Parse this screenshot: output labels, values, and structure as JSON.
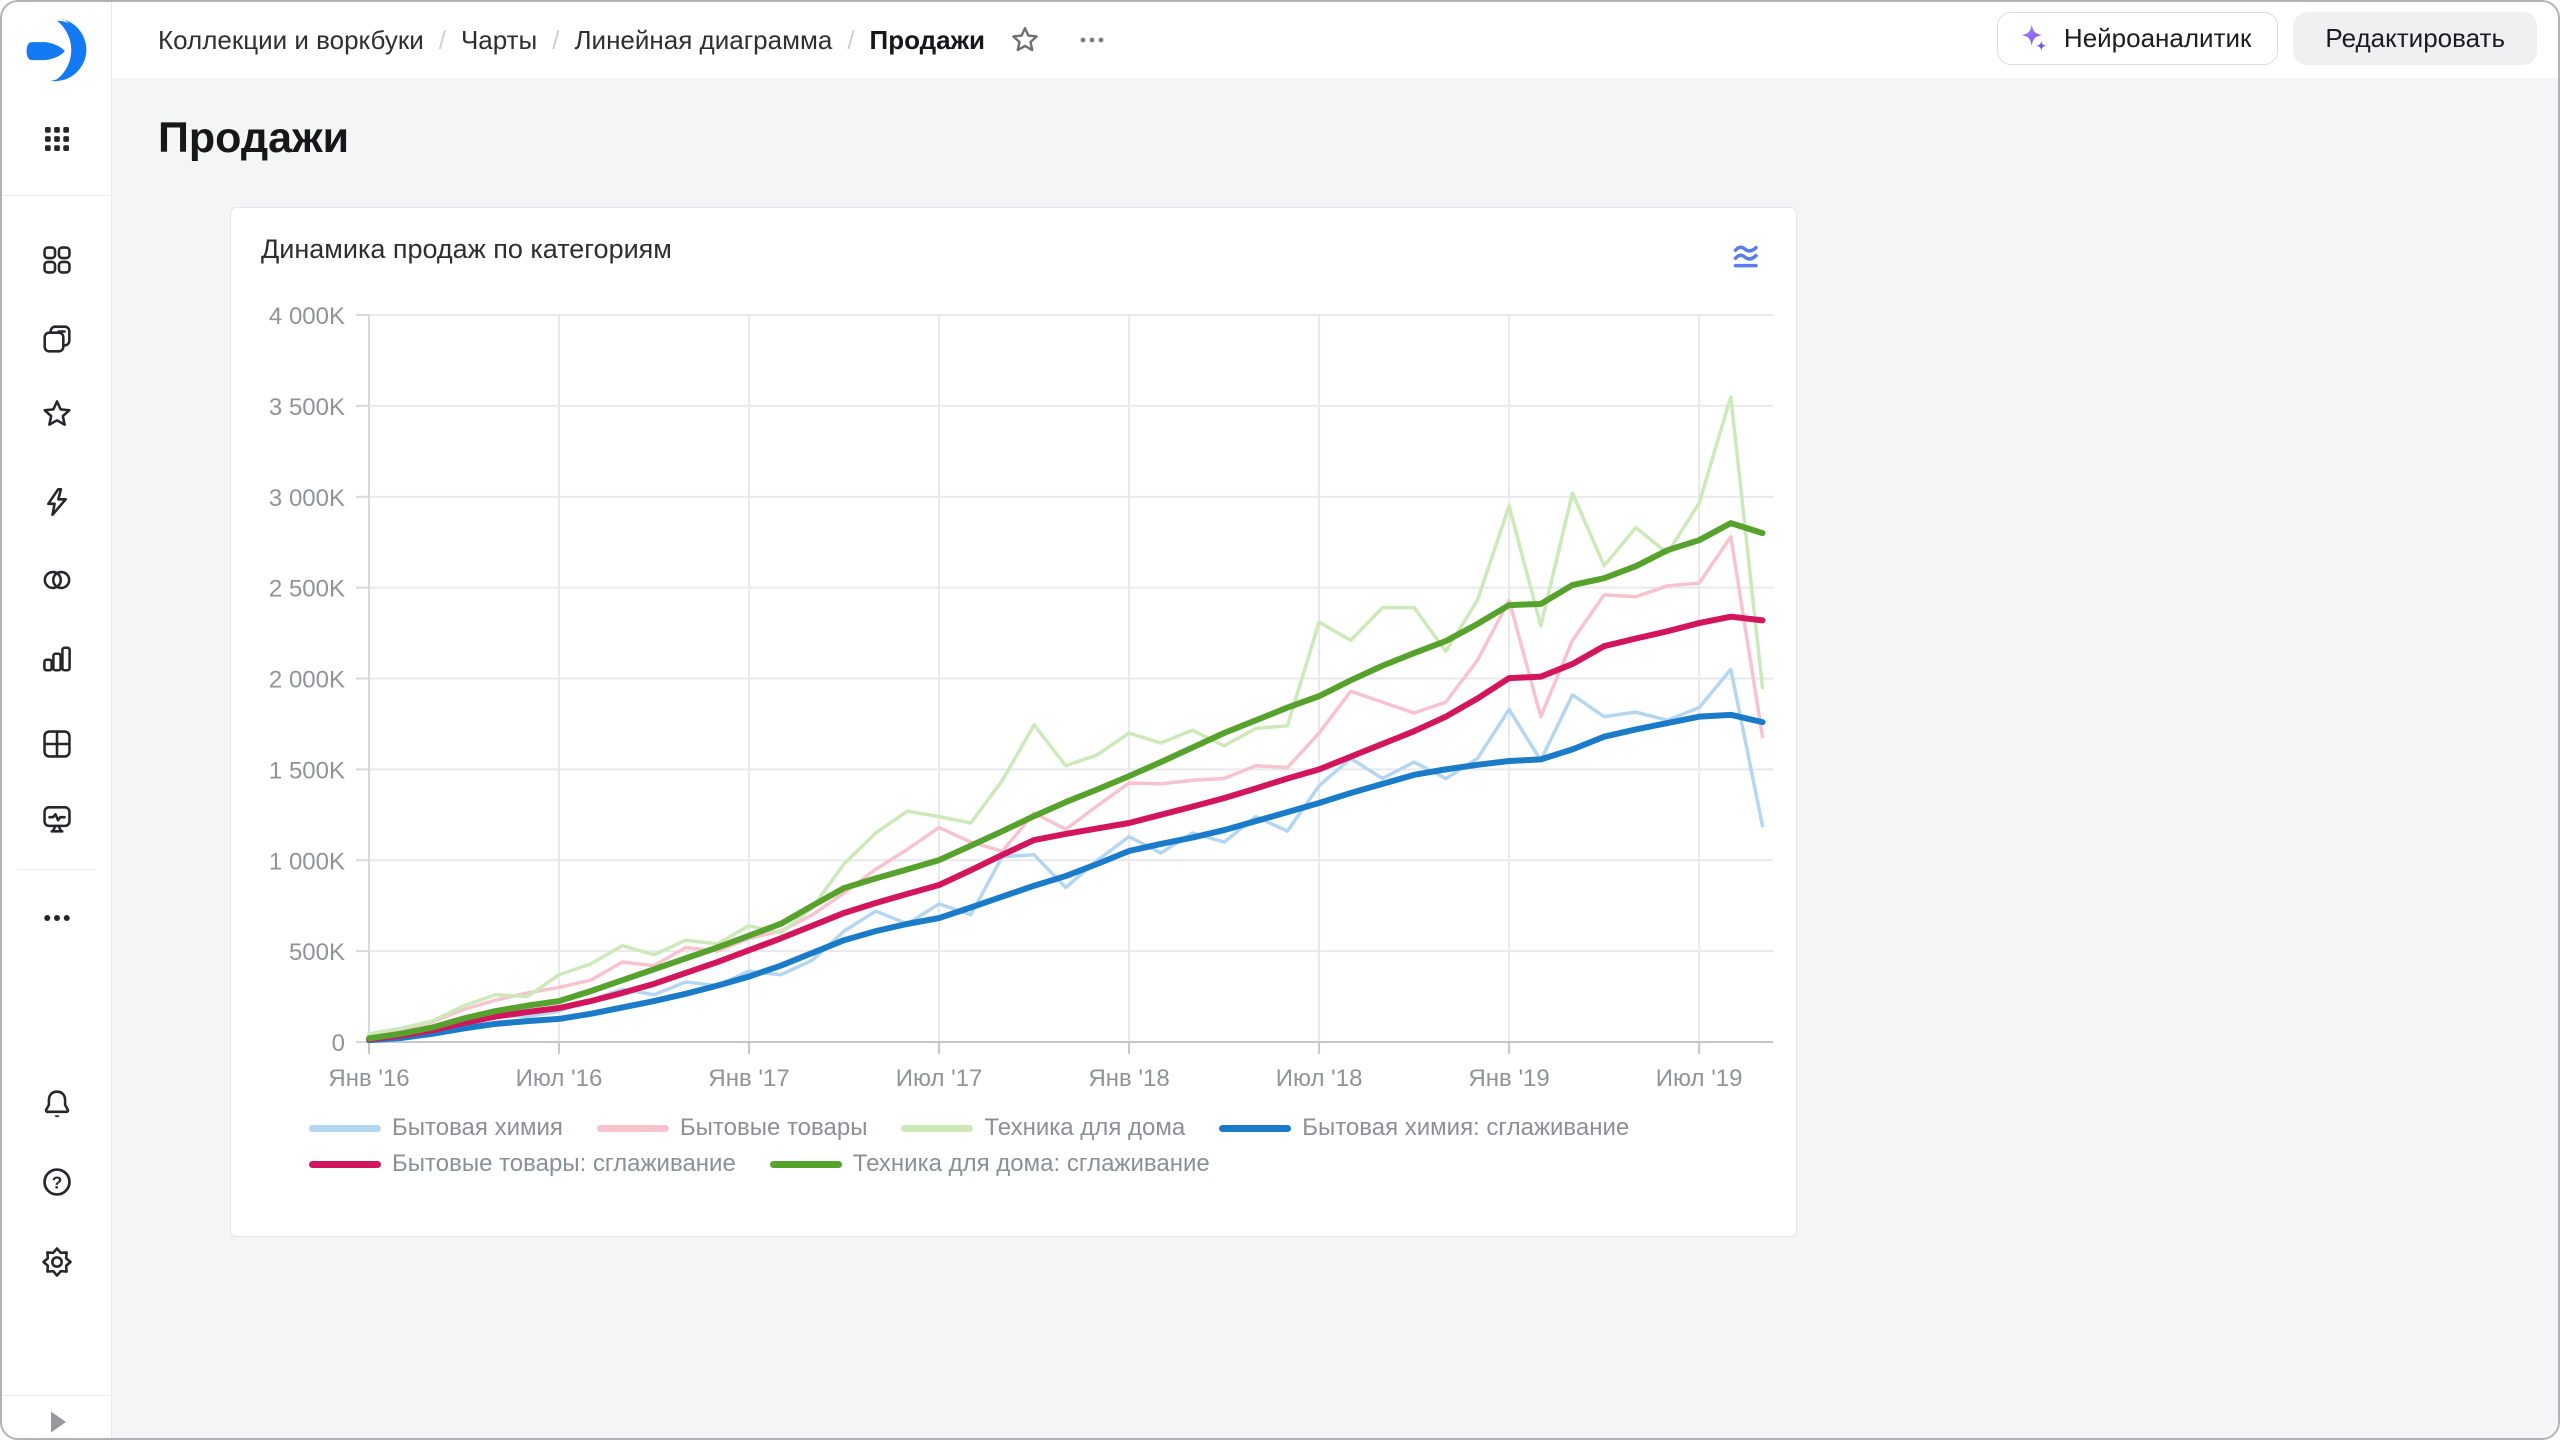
{
  "header": {
    "breadcrumb": {
      "items": [
        "Коллекции и воркбуки",
        "Чарты",
        "Линейная диаграмма",
        "Продажи"
      ],
      "separator": "/"
    },
    "neuro_button": "Нейроаналитик",
    "edit_button": "Редактировать"
  },
  "sidebar": {
    "icons": [
      "datalens-logo",
      "apps-grid",
      "dashboards",
      "collections",
      "favorites",
      "connections",
      "datasets",
      "charts",
      "tables",
      "editor",
      "more",
      "notifications",
      "help",
      "settings",
      "expand"
    ],
    "help_glyph": "?"
  },
  "page": {
    "title": "Продажи"
  },
  "card": {
    "title": "Динамика продаж по категориям"
  },
  "chart_data": {
    "type": "line",
    "title": "Динамика продаж по категориям",
    "x_start_month": "Янв 2016",
    "x_end_month": "Сен 2019",
    "x_points": 45,
    "x_tick_months": [
      0,
      6,
      12,
      18,
      24,
      30,
      36,
      42
    ],
    "x_tick_labels": [
      "Янв '16",
      "Июл '16",
      "Янв '17",
      "Июл '17",
      "Янв '18",
      "Июл '18",
      "Янв '19",
      "Июл '19"
    ],
    "ylim": [
      0,
      4000
    ],
    "y_tick_values": [
      0,
      500,
      1000,
      1500,
      2000,
      2500,
      3000,
      3500,
      4000
    ],
    "y_tick_labels": [
      "0",
      "500K",
      "1 000K",
      "1 500K",
      "2 000K",
      "2 500K",
      "3 000K",
      "3 500K",
      "4 000K"
    ],
    "grid": true,
    "legend_position": "bottom",
    "series": [
      {
        "name": "Бытовая химия",
        "color": "#b5d6f1",
        "width": 3.5,
        "values": [
          10,
          30,
          60,
          110,
          150,
          140,
          170,
          230,
          290,
          260,
          330,
          310,
          390,
          370,
          450,
          610,
          720,
          650,
          760,
          700,
          1020,
          1030,
          850,
          1000,
          1130,
          1040,
          1150,
          1100,
          1240,
          1160,
          1410,
          1560,
          1450,
          1540,
          1450,
          1560,
          1830,
          1550,
          1910,
          1790,
          1815,
          1770,
          1840,
          2050,
          1190
        ]
      },
      {
        "name": "Бытовые товары",
        "color": "#f8c3cf",
        "width": 3.5,
        "values": [
          40,
          70,
          110,
          180,
          230,
          270,
          300,
          340,
          440,
          420,
          520,
          500,
          570,
          610,
          700,
          820,
          950,
          1060,
          1180,
          1100,
          1050,
          1260,
          1170,
          1300,
          1425,
          1420,
          1440,
          1450,
          1520,
          1510,
          1700,
          1930,
          1870,
          1810,
          1870,
          2100,
          2430,
          1790,
          2210,
          2460,
          2450,
          2510,
          2525,
          2780,
          1680
        ]
      },
      {
        "name": "Техника для дома",
        "color": "#cde9b9",
        "width": 3.5,
        "values": [
          45,
          75,
          115,
          200,
          260,
          250,
          370,
          430,
          530,
          480,
          560,
          540,
          640,
          600,
          740,
          980,
          1150,
          1270,
          1240,
          1205,
          1440,
          1745,
          1520,
          1580,
          1700,
          1645,
          1715,
          1630,
          1725,
          1740,
          2310,
          2210,
          2390,
          2390,
          2150,
          2430,
          2950,
          2290,
          3020,
          2620,
          2830,
          2690,
          2965,
          3550,
          1950
        ]
      },
      {
        "name": "Бытовая химия: сглаживание",
        "color": "#1a7cc9",
        "width": 6,
        "values": [
          10,
          22,
          45,
          75,
          100,
          115,
          127,
          155,
          190,
          225,
          265,
          310,
          360,
          420,
          490,
          560,
          610,
          650,
          682,
          740,
          800,
          860,
          913,
          980,
          1051,
          1090,
          1125,
          1166,
          1215,
          1265,
          1315,
          1370,
          1420,
          1470,
          1500,
          1525,
          1546,
          1555,
          1610,
          1680,
          1720,
          1755,
          1790,
          1800,
          1760
        ]
      },
      {
        "name": "Бытовые товары: сглаживание",
        "color": "#d2155c",
        "width": 6,
        "values": [
          15,
          35,
          65,
          105,
          140,
          165,
          187,
          225,
          270,
          320,
          380,
          440,
          505,
          570,
          640,
          710,
          765,
          815,
          864,
          945,
          1030,
          1111,
          1145,
          1175,
          1205,
          1250,
          1295,
          1342,
          1395,
          1450,
          1500,
          1570,
          1640,
          1710,
          1790,
          1890,
          2002,
          2010,
          2080,
          2178,
          2220,
          2260,
          2305,
          2340,
          2320
        ]
      },
      {
        "name": "Техника для дома: сглаживание",
        "color": "#56a22c",
        "width": 6,
        "values": [
          20,
          45,
          80,
          130,
          170,
          200,
          225,
          280,
          340,
          400,
          460,
          520,
          585,
          650,
          750,
          847,
          900,
          950,
          1001,
          1080,
          1160,
          1243,
          1320,
          1390,
          1463,
          1540,
          1620,
          1700,
          1770,
          1840,
          1903,
          1990,
          2070,
          2140,
          2206,
          2300,
          2404,
          2410,
          2514,
          2552,
          2618,
          2706,
          2761,
          2855,
          2800
        ]
      }
    ]
  }
}
